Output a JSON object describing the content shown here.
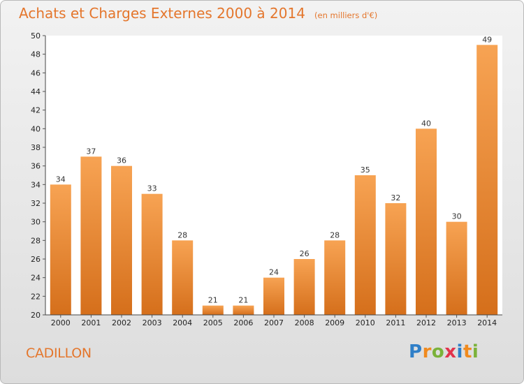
{
  "title": "Achats et Charges Externes 2000 à 2014",
  "subtitle": "(en milliers d'€)",
  "town": "CADILLON",
  "logo": {
    "text": "Proxiti",
    "letters": [
      {
        "char": "P",
        "color": "#2f7fc8"
      },
      {
        "char": "r",
        "color": "#f08a1e"
      },
      {
        "char": "o",
        "color": "#7bb23a"
      },
      {
        "char": "x",
        "color": "#e2334c"
      },
      {
        "char": "i",
        "color": "#2f7fc8"
      },
      {
        "char": "t",
        "color": "#f08a1e"
      },
      {
        "char": "i",
        "color": "#7bb23a"
      }
    ]
  },
  "colors": {
    "bar_light": "#f7a353",
    "bar_dark": "#d56f1b",
    "accent": "#e4762c"
  },
  "chart_data": {
    "type": "bar",
    "title": "Achats et Charges Externes 2000 à 2014",
    "subtitle": "(en milliers d'€)",
    "categories": [
      "2000",
      "2001",
      "2002",
      "2003",
      "2004",
      "2005",
      "2006",
      "2007",
      "2008",
      "2009",
      "2010",
      "2011",
      "2012",
      "2013",
      "2014"
    ],
    "values": [
      34,
      37,
      36,
      33,
      28,
      21,
      21,
      24,
      26,
      28,
      35,
      32,
      40,
      30,
      49
    ],
    "ylim": [
      20,
      50
    ],
    "yticks": [
      20,
      22,
      24,
      26,
      28,
      30,
      32,
      34,
      36,
      38,
      40,
      42,
      44,
      46,
      48,
      50
    ],
    "grid": false,
    "legend": "none"
  }
}
